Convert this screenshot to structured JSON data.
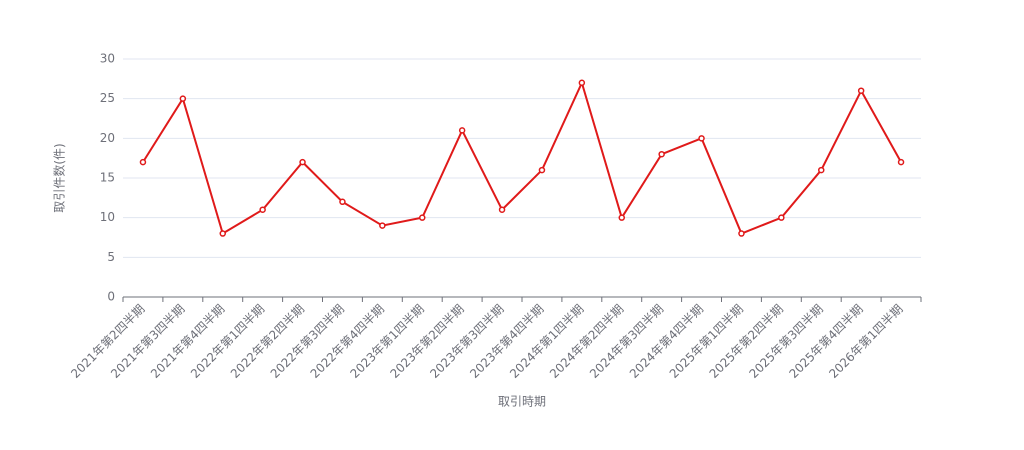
{
  "chart_data": {
    "type": "line",
    "x_label": "取引時期",
    "y_label": "取引件数(件)",
    "categories": [
      "2021年第2四半期",
      "2021年第3四半期",
      "2021年第4四半期",
      "2022年第1四半期",
      "2022年第2四半期",
      "2022年第3四半期",
      "2022年第4四半期",
      "2023年第1四半期",
      "2023年第2四半期",
      "2023年第3四半期",
      "2023年第4四半期",
      "2024年第1四半期",
      "2024年第2四半期",
      "2024年第3四半期",
      "2024年第4四半期",
      "2025年第1四半期",
      "2025年第2四半期",
      "2025年第3四半期",
      "2025年第4四半期",
      "2026年第1四半期"
    ],
    "values": [
      17,
      25,
      8,
      11,
      17,
      12,
      9,
      10,
      21,
      11,
      16,
      27,
      10,
      18,
      20,
      8,
      10,
      16,
      26,
      17
    ],
    "color": "#e01a1a",
    "ylim": [
      0,
      30
    ],
    "yticks": [
      0,
      5,
      10,
      15,
      20,
      25,
      30
    ],
    "grid": true
  }
}
